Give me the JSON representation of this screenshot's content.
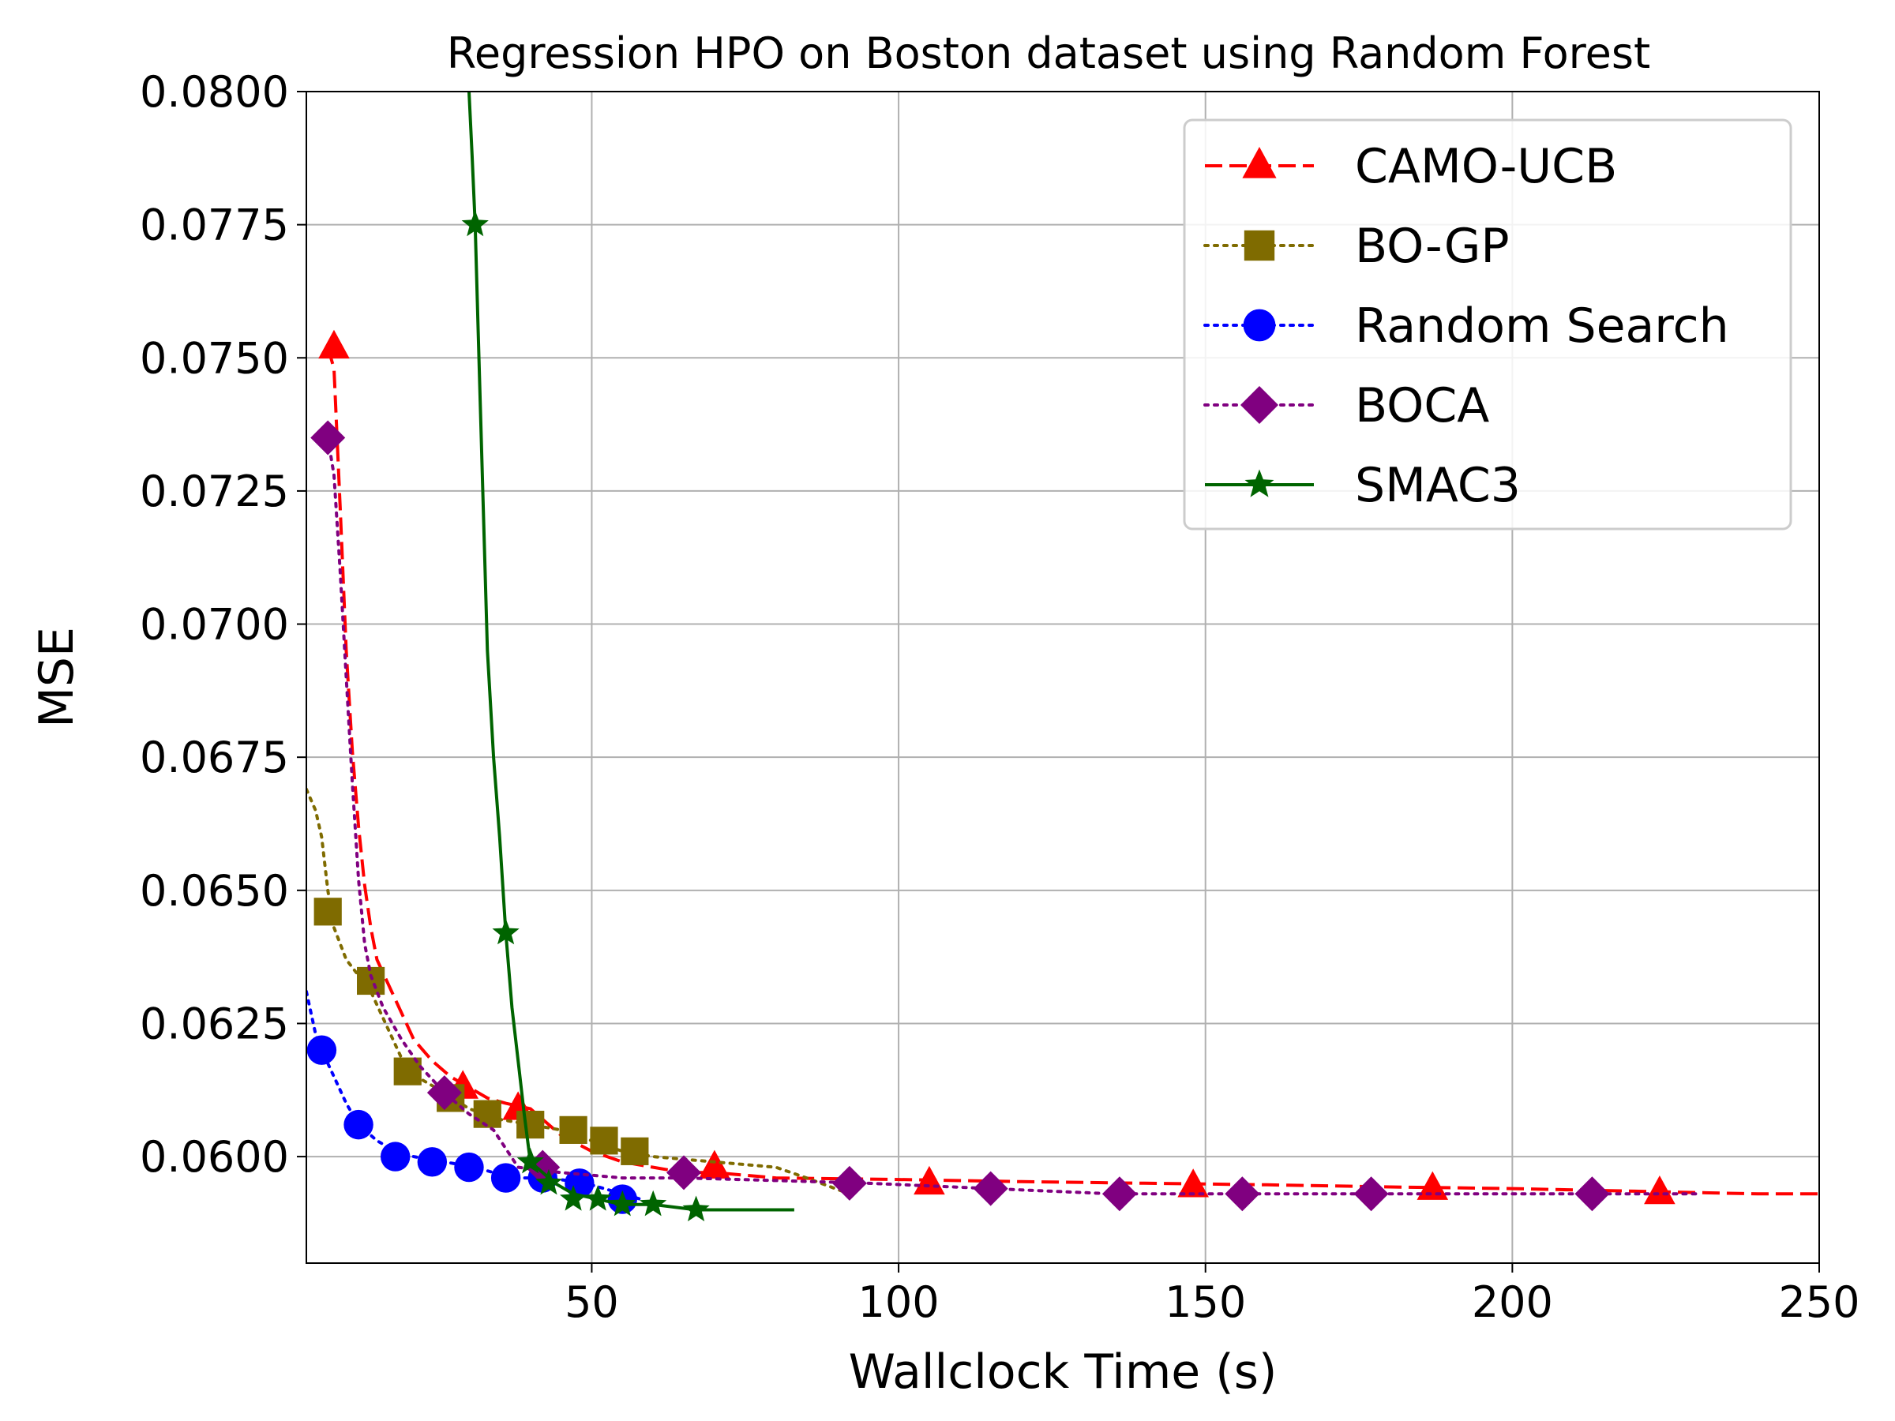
{
  "chart_data": {
    "type": "line",
    "title": "Regression HPO on Boston dataset using Random Forest",
    "xlabel": "Wallclock Time (s)",
    "ylabel": "MSE",
    "xlim": [
      3.5,
      250
    ],
    "ylim": [
      0.058,
      0.08
    ],
    "x_ticks": [
      50,
      100,
      150,
      200,
      250
    ],
    "x_tick_labels": [
      "50",
      "100",
      "150",
      "200",
      "250"
    ],
    "y_ticks": [
      0.06,
      0.0625,
      0.065,
      0.0675,
      0.07,
      0.0725,
      0.075,
      0.0775,
      0.08
    ],
    "y_tick_labels": [
      "0.0600",
      "0.0625",
      "0.0650",
      "0.0675",
      "0.0700",
      "0.0725",
      "0.0750",
      "0.0775",
      "0.0800"
    ],
    "grid": true,
    "legend_position": "top-right",
    "series": [
      {
        "name": "CAMO-UCB",
        "color": "#ff0000",
        "dash": "dashed",
        "marker": "triangle",
        "line": [
          [
            7,
            0.0752
          ],
          [
            8,
            0.0748
          ],
          [
            9,
            0.0722
          ],
          [
            10,
            0.0695
          ],
          [
            11,
            0.0676
          ],
          [
            12,
            0.0662
          ],
          [
            13,
            0.0651
          ],
          [
            14,
            0.0643
          ],
          [
            15,
            0.0637
          ],
          [
            17,
            0.0632
          ],
          [
            19,
            0.0627
          ],
          [
            21,
            0.0622
          ],
          [
            24,
            0.0618
          ],
          [
            27,
            0.0615
          ],
          [
            30,
            0.0613
          ],
          [
            33,
            0.0611
          ],
          [
            36,
            0.061
          ],
          [
            40,
            0.0609
          ],
          [
            45,
            0.0604
          ],
          [
            50,
            0.0601
          ],
          [
            55,
            0.0599
          ],
          [
            60,
            0.0598
          ],
          [
            65,
            0.0597
          ],
          [
            70,
            0.0597
          ],
          [
            80,
            0.0596
          ],
          [
            100,
            0.05957
          ],
          [
            120,
            0.05953
          ],
          [
            140,
            0.0595
          ],
          [
            160,
            0.05947
          ],
          [
            180,
            0.05943
          ],
          [
            200,
            0.0594
          ],
          [
            220,
            0.05935
          ],
          [
            240,
            0.0593
          ],
          [
            250,
            0.0593
          ]
        ],
        "markers": [
          [
            8,
            0.0752
          ],
          [
            29,
            0.0613
          ],
          [
            38,
            0.0609
          ],
          [
            70,
            0.0598
          ],
          [
            105,
            0.0595
          ],
          [
            148,
            0.05945
          ],
          [
            187,
            0.0594
          ],
          [
            224,
            0.05932
          ]
        ]
      },
      {
        "name": "BO-GP",
        "color": "#7f6b00",
        "dash": "dotted",
        "marker": "square",
        "line": [
          [
            3.5,
            0.0669
          ],
          [
            5,
            0.0665
          ],
          [
            6,
            0.066
          ],
          [
            7,
            0.065
          ],
          [
            8,
            0.0643
          ],
          [
            10,
            0.0637
          ],
          [
            12,
            0.0634
          ],
          [
            14,
            0.0631
          ],
          [
            16,
            0.0626
          ],
          [
            18,
            0.0621
          ],
          [
            20,
            0.0616
          ],
          [
            23,
            0.0614
          ],
          [
            26,
            0.0612
          ],
          [
            30,
            0.0609
          ],
          [
            35,
            0.0607
          ],
          [
            40,
            0.0606
          ],
          [
            45,
            0.0605
          ],
          [
            50,
            0.0603
          ],
          [
            55,
            0.0601
          ],
          [
            60,
            0.06
          ],
          [
            70,
            0.0599
          ],
          [
            80,
            0.0598
          ],
          [
            85,
            0.0596
          ],
          [
            92,
            0.0593
          ]
        ],
        "markers": [
          [
            7,
            0.0646
          ],
          [
            14,
            0.0633
          ],
          [
            20,
            0.0616
          ],
          [
            27,
            0.0611
          ],
          [
            33,
            0.0608
          ],
          [
            40,
            0.0606
          ],
          [
            47,
            0.0605
          ],
          [
            52,
            0.0603
          ],
          [
            57,
            0.0601
          ]
        ]
      },
      {
        "name": "Random Search",
        "color": "#0000ff",
        "dash": "dotted",
        "marker": "circle",
        "line": [
          [
            3.5,
            0.0631
          ],
          [
            5,
            0.0623
          ],
          [
            6,
            0.062
          ],
          [
            8,
            0.0615
          ],
          [
            10,
            0.061
          ],
          [
            12,
            0.0606
          ],
          [
            15,
            0.0603
          ],
          [
            18,
            0.0601
          ],
          [
            21,
            0.06
          ],
          [
            26,
            0.0599
          ],
          [
            31,
            0.0598
          ],
          [
            37,
            0.0596
          ],
          [
            43,
            0.0596
          ],
          [
            49,
            0.0595
          ],
          [
            55,
            0.0593
          ],
          [
            58,
            0.0592
          ]
        ],
        "markers": [
          [
            6,
            0.062
          ],
          [
            12,
            0.0606
          ],
          [
            18,
            0.06
          ],
          [
            24,
            0.0599
          ],
          [
            30,
            0.0598
          ],
          [
            36,
            0.0596
          ],
          [
            42,
            0.0596
          ],
          [
            48,
            0.0595
          ],
          [
            55,
            0.0592
          ]
        ]
      },
      {
        "name": "BOCA",
        "color": "#800080",
        "dash": "dotted",
        "marker": "diamond",
        "line": [
          [
            7,
            0.0735
          ],
          [
            8,
            0.0728
          ],
          [
            9,
            0.071
          ],
          [
            10,
            0.069
          ],
          [
            11,
            0.067
          ],
          [
            12,
            0.0652
          ],
          [
            13,
            0.064
          ],
          [
            14,
            0.0634
          ],
          [
            16,
            0.0628
          ],
          [
            19,
            0.0622
          ],
          [
            22,
            0.0617
          ],
          [
            26,
            0.0612
          ],
          [
            30,
            0.0608
          ],
          [
            34,
            0.0605
          ],
          [
            38,
            0.0598
          ],
          [
            45,
            0.0597
          ],
          [
            55,
            0.0596
          ],
          [
            65,
            0.0596
          ],
          [
            80,
            0.05955
          ],
          [
            95,
            0.0595
          ],
          [
            115,
            0.0594
          ],
          [
            135,
            0.0593
          ],
          [
            155,
            0.0593
          ],
          [
            175,
            0.0593
          ],
          [
            200,
            0.0593
          ],
          [
            213,
            0.0593
          ],
          [
            230,
            0.0593
          ]
        ],
        "markers": [
          [
            7,
            0.0735
          ],
          [
            26,
            0.0612
          ],
          [
            42,
            0.0598
          ],
          [
            65,
            0.0597
          ],
          [
            92,
            0.0595
          ],
          [
            115,
            0.0594
          ],
          [
            136,
            0.0593
          ],
          [
            156,
            0.0593
          ],
          [
            177,
            0.0593
          ],
          [
            213,
            0.0593
          ]
        ]
      },
      {
        "name": "SMAC3",
        "color": "#006400",
        "dash": "solid",
        "marker": "star",
        "line": [
          [
            30,
            0.08
          ],
          [
            30.5,
            0.0788
          ],
          [
            31,
            0.0775
          ],
          [
            31.5,
            0.0755
          ],
          [
            32,
            0.0735
          ],
          [
            32.5,
            0.0715
          ],
          [
            33,
            0.0695
          ],
          [
            34,
            0.0675
          ],
          [
            35,
            0.066
          ],
          [
            36,
            0.0642
          ],
          [
            37,
            0.0628
          ],
          [
            38,
            0.0618
          ],
          [
            39,
            0.0608
          ],
          [
            40,
            0.0599
          ],
          [
            42,
            0.0597
          ],
          [
            44,
            0.0595
          ],
          [
            47,
            0.0593
          ],
          [
            51,
            0.0592
          ],
          [
            55,
            0.0591
          ],
          [
            60,
            0.0591
          ],
          [
            67,
            0.059
          ],
          [
            75,
            0.059
          ],
          [
            83,
            0.059
          ]
        ],
        "markers": [
          [
            31,
            0.0775
          ],
          [
            36,
            0.0642
          ],
          [
            40,
            0.0599
          ],
          [
            43,
            0.0595
          ],
          [
            47,
            0.0592
          ],
          [
            51,
            0.0592
          ],
          [
            55,
            0.0591
          ],
          [
            60,
            0.0591
          ],
          [
            67,
            0.059
          ]
        ]
      }
    ]
  }
}
